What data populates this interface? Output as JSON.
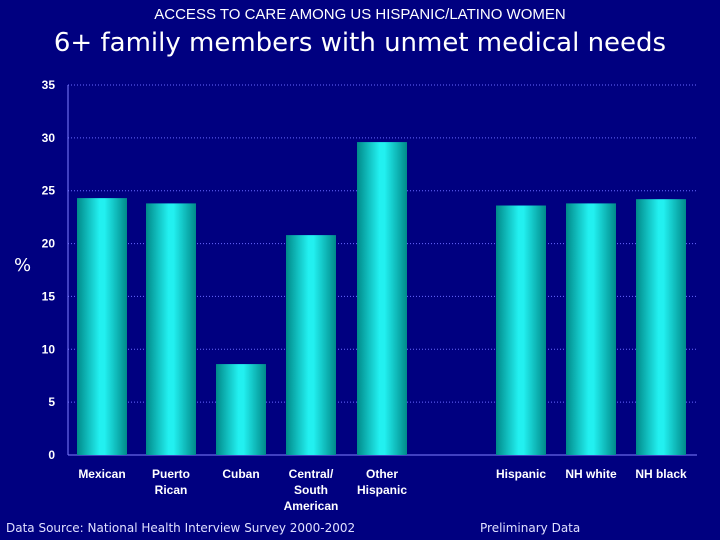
{
  "header": {
    "supertitle": "ACCESS TO CARE AMONG US HISPANIC/LATINO WOMEN",
    "title": "6+ family members with unmet medical needs"
  },
  "footer": {
    "source": "Data Source:  National Health Interview Survey 2000-2002",
    "note": "Preliminary Data"
  },
  "colors": {
    "background": "#000080",
    "bar": "#19d6d6",
    "bar_edge": "#007a7a"
  },
  "chart_data": {
    "type": "bar",
    "title": "6+ family members with unmet medical needs",
    "xlabel": "",
    "ylabel": "%",
    "ylim": [
      0,
      35
    ],
    "yticks": [
      0,
      5,
      10,
      15,
      20,
      25,
      30,
      35
    ],
    "grid": "horizontal dotted",
    "categories": [
      [
        "Mexican"
      ],
      [
        "Puerto",
        "Rican"
      ],
      [
        "Cuban"
      ],
      [
        "Central/",
        "South",
        "American"
      ],
      [
        "Other",
        "Hispanic"
      ],
      [
        "Hispanic"
      ],
      [
        "NH white"
      ],
      [
        "NH black"
      ]
    ],
    "values": [
      24.3,
      23.8,
      8.6,
      20.8,
      29.6,
      23.6,
      23.8,
      24.2
    ]
  }
}
